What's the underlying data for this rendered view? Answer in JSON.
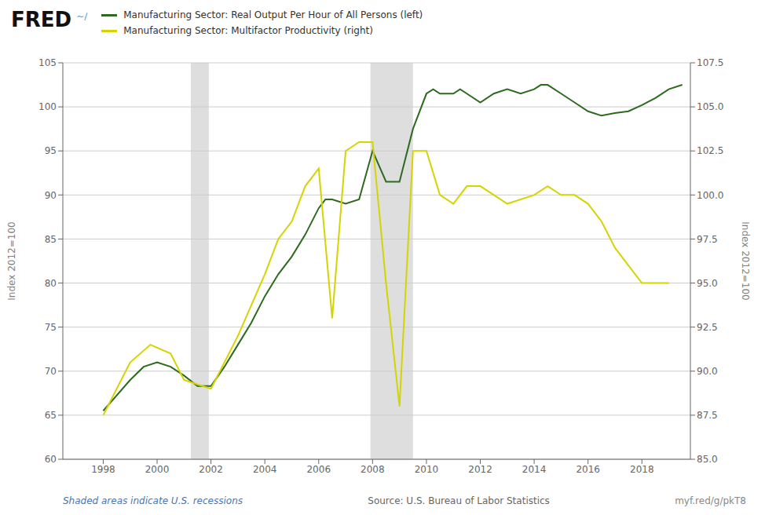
{
  "chart_data": {
    "type": "line",
    "title": "FRED",
    "annotations": [
      "~∕",
      "Shaded areas indicate U.S. recessions",
      "Source: U.S. Bureau of Labor Statistics",
      "myf.red/g/pkT8"
    ],
    "ylabel": "Index 2012=100",
    "y2label": "Index 2012=100",
    "xlim": [
      1996.5,
      2019.8
    ],
    "xticks": [
      1998,
      2000,
      2002,
      2004,
      2006,
      2008,
      2010,
      2012,
      2014,
      2016,
      2018
    ],
    "ylim": [
      60,
      105
    ],
    "yticks": [
      60,
      65,
      70,
      75,
      80,
      85,
      90,
      95,
      100,
      105
    ],
    "y2lim": [
      85.0,
      107.5
    ],
    "y2ticks": [
      {
        "value": 85,
        "label": "85.0"
      },
      87.5,
      {
        "value": 90,
        "label": "90.0"
      },
      92.5,
      {
        "value": 95,
        "label": "95.0"
      },
      97.5,
      {
        "value": 100,
        "label": "100.0"
      },
      102.5,
      {
        "value": 105,
        "label": "105.0"
      },
      107.5
    ],
    "grid": true,
    "shaded_ranges": [
      [
        2001.25,
        2001.92
      ],
      [
        2007.92,
        2009.5
      ]
    ],
    "shaded_color": "#cccccc",
    "series": [
      {
        "name": "Manufacturing Sector: Real Output Per Hour of All Persons (left)",
        "color": "#2d6a1f",
        "axis": "y",
        "x": [
          1998.0,
          1999.0,
          1999.5,
          2000.0,
          2000.5,
          2001.0,
          2001.5,
          2002.0,
          2002.5,
          2003.0,
          2003.5,
          2004.0,
          2004.5,
          2005.0,
          2005.5,
          2006.0,
          2006.25,
          2006.5,
          2007.0,
          2007.5,
          2008.0,
          2008.5,
          2009.0,
          2009.5,
          2010.0,
          2010.25,
          2010.5,
          2011.0,
          2011.25,
          2011.5,
          2012.0,
          2012.5,
          2013.0,
          2013.5,
          2014.0,
          2014.25,
          2014.5,
          2015.0,
          2015.5,
          2016.0,
          2016.5,
          2017.0,
          2017.5,
          2018.0,
          2018.5,
          2019.0,
          2019.5
        ],
        "values": [
          65.5,
          69.0,
          70.5,
          71.0,
          70.5,
          69.5,
          68.3,
          68.3,
          70.5,
          73.0,
          75.5,
          78.5,
          81.0,
          83.0,
          85.5,
          88.5,
          89.5,
          89.5,
          89.0,
          89.5,
          95.0,
          91.5,
          91.5,
          97.5,
          101.5,
          102.0,
          101.5,
          101.5,
          102.0,
          101.5,
          100.5,
          101.5,
          102.0,
          101.5,
          102.0,
          102.5,
          102.5,
          101.5,
          100.5,
          99.5,
          99.0,
          99.3,
          99.5,
          100.2,
          101.0,
          102.0,
          102.5
        ]
      },
      {
        "name": "Manufacturing Sector: Multifactor Productivity (right)",
        "color": "#d4d400",
        "axis": "y2",
        "x": [
          1998.0,
          1999.0,
          1999.75,
          2000.5,
          2001.0,
          2002.0,
          2003.0,
          2004.0,
          2004.5,
          2005.0,
          2005.5,
          2006.0,
          2006.5,
          2007.0,
          2007.5,
          2008.0,
          2008.5,
          2009.0,
          2009.5,
          2010.0,
          2010.5,
          2011.0,
          2011.5,
          2012.0,
          2013.0,
          2014.0,
          2014.5,
          2015.0,
          2015.5,
          2016.0,
          2016.5,
          2017.0,
          2017.5,
          2018.0,
          2019.0
        ],
        "values": [
          87.5,
          90.5,
          91.5,
          91.0,
          89.5,
          89.0,
          92.0,
          95.5,
          97.5,
          98.5,
          100.5,
          101.5,
          93.0,
          102.5,
          103.0,
          103.0,
          95.0,
          88.0,
          102.5,
          102.5,
          100.0,
          99.5,
          100.5,
          100.5,
          99.5,
          100.0,
          100.5,
          100.0,
          100.0,
          99.5,
          98.5,
          97.0,
          96.0,
          95.0,
          95.0
        ]
      }
    ]
  }
}
